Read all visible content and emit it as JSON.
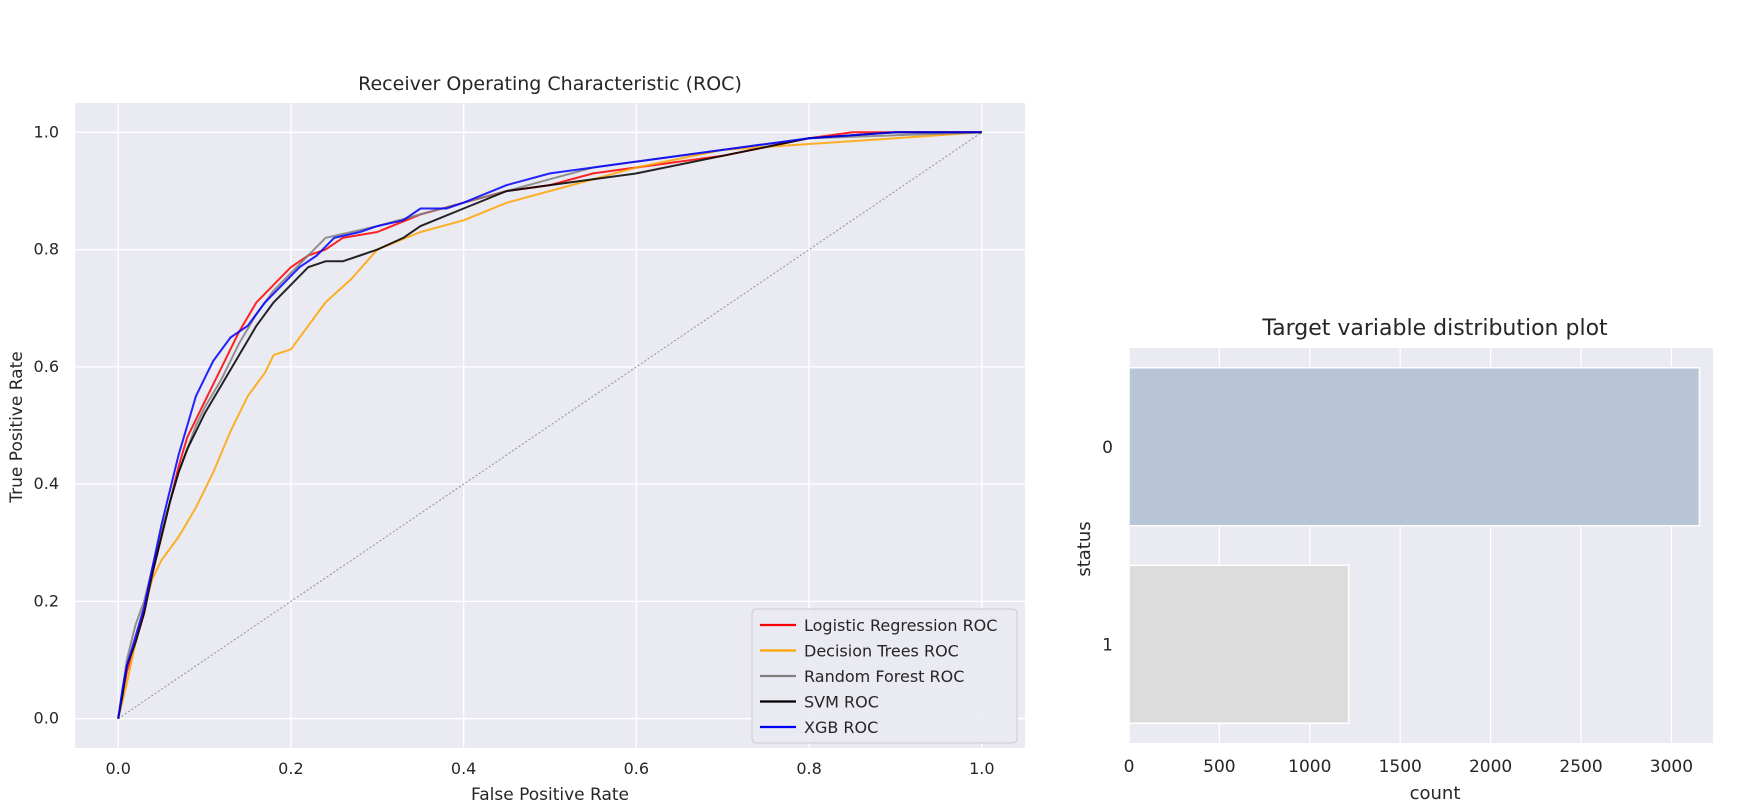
{
  "chart_data": [
    {
      "type": "line",
      "title": "Receiver Operating Characteristic (ROC)",
      "xlabel": "False Positive Rate",
      "ylabel": "True Positive Rate",
      "xlim": [
        -0.05,
        1.05
      ],
      "ylim": [
        -0.05,
        1.05
      ],
      "xticks": [
        0.0,
        0.2,
        0.4,
        0.6,
        0.8,
        1.0
      ],
      "yticks": [
        0.0,
        0.2,
        0.4,
        0.6,
        0.8,
        1.0
      ],
      "tick_labels": [
        "0.0",
        "0.2",
        "0.4",
        "0.6",
        "0.8",
        "1.0"
      ],
      "grid": true,
      "legend_position": "lower-right",
      "series": [
        {
          "name": "Logistic Regression ROC",
          "color": "#ff0000",
          "x": [
            0,
            0.005,
            0.01,
            0.02,
            0.03,
            0.04,
            0.05,
            0.06,
            0.07,
            0.08,
            0.09,
            0.1,
            0.12,
            0.14,
            0.16,
            0.18,
            0.2,
            0.22,
            0.24,
            0.26,
            0.3,
            0.35,
            0.4,
            0.45,
            0.5,
            0.55,
            0.6,
            0.7,
            0.8,
            0.85,
            0.9,
            1.0
          ],
          "y": [
            0,
            0.04,
            0.08,
            0.13,
            0.18,
            0.25,
            0.31,
            0.37,
            0.43,
            0.48,
            0.51,
            0.54,
            0.6,
            0.66,
            0.71,
            0.74,
            0.77,
            0.79,
            0.8,
            0.82,
            0.83,
            0.86,
            0.88,
            0.9,
            0.91,
            0.93,
            0.94,
            0.96,
            0.99,
            1.0,
            1.0,
            1.0
          ]
        },
        {
          "name": "Decision Trees ROC",
          "color": "#ffa500",
          "x": [
            0,
            0.01,
            0.02,
            0.03,
            0.04,
            0.05,
            0.07,
            0.09,
            0.11,
            0.13,
            0.15,
            0.17,
            0.18,
            0.2,
            0.22,
            0.24,
            0.27,
            0.3,
            0.35,
            0.4,
            0.45,
            0.5,
            0.6,
            0.7,
            0.8,
            0.9,
            1.0
          ],
          "y": [
            0,
            0.06,
            0.13,
            0.19,
            0.24,
            0.27,
            0.31,
            0.36,
            0.42,
            0.49,
            0.55,
            0.59,
            0.62,
            0.63,
            0.67,
            0.71,
            0.75,
            0.8,
            0.83,
            0.85,
            0.88,
            0.9,
            0.94,
            0.97,
            0.98,
            0.99,
            1.0
          ]
        },
        {
          "name": "Random Forest ROC",
          "color": "#808080",
          "x": [
            0,
            0.005,
            0.01,
            0.02,
            0.03,
            0.04,
            0.05,
            0.06,
            0.07,
            0.08,
            0.09,
            0.1,
            0.12,
            0.14,
            0.16,
            0.18,
            0.2,
            0.22,
            0.24,
            0.27,
            0.3,
            0.35,
            0.4,
            0.45,
            0.5,
            0.55,
            0.6,
            0.65,
            0.7,
            0.8,
            0.9,
            1.0
          ],
          "y": [
            0,
            0.05,
            0.1,
            0.16,
            0.2,
            0.26,
            0.32,
            0.37,
            0.42,
            0.46,
            0.5,
            0.53,
            0.58,
            0.64,
            0.69,
            0.73,
            0.76,
            0.79,
            0.82,
            0.83,
            0.84,
            0.86,
            0.88,
            0.9,
            0.92,
            0.94,
            0.95,
            0.96,
            0.97,
            0.99,
            0.995,
            1.0
          ]
        },
        {
          "name": "SVM ROC",
          "color": "#000000",
          "x": [
            0,
            0.005,
            0.01,
            0.02,
            0.03,
            0.04,
            0.05,
            0.06,
            0.07,
            0.08,
            0.09,
            0.1,
            0.12,
            0.14,
            0.16,
            0.18,
            0.2,
            0.22,
            0.24,
            0.26,
            0.28,
            0.3,
            0.33,
            0.35,
            0.4,
            0.45,
            0.5,
            0.55,
            0.6,
            0.7,
            0.8,
            0.9,
            1.0
          ],
          "y": [
            0,
            0.04,
            0.09,
            0.13,
            0.18,
            0.25,
            0.31,
            0.37,
            0.42,
            0.46,
            0.49,
            0.52,
            0.57,
            0.62,
            0.67,
            0.71,
            0.74,
            0.77,
            0.78,
            0.78,
            0.79,
            0.8,
            0.82,
            0.84,
            0.87,
            0.9,
            0.91,
            0.92,
            0.93,
            0.96,
            0.99,
            1.0,
            1.0
          ]
        },
        {
          "name": "XGB ROC",
          "color": "#0000ff",
          "x": [
            0,
            0.005,
            0.01,
            0.02,
            0.03,
            0.04,
            0.05,
            0.06,
            0.07,
            0.08,
            0.09,
            0.1,
            0.11,
            0.13,
            0.15,
            0.17,
            0.19,
            0.21,
            0.23,
            0.25,
            0.28,
            0.3,
            0.33,
            0.35,
            0.38,
            0.4,
            0.45,
            0.5,
            0.55,
            0.6,
            0.7,
            0.8,
            0.9,
            1.0
          ],
          "y": [
            0,
            0.05,
            0.09,
            0.14,
            0.19,
            0.26,
            0.33,
            0.39,
            0.45,
            0.5,
            0.55,
            0.58,
            0.61,
            0.65,
            0.67,
            0.71,
            0.74,
            0.77,
            0.79,
            0.82,
            0.83,
            0.84,
            0.85,
            0.87,
            0.87,
            0.88,
            0.91,
            0.93,
            0.94,
            0.95,
            0.97,
            0.99,
            1.0,
            1.0
          ]
        }
      ],
      "reference_line": {
        "x": [
          0,
          1
        ],
        "y": [
          0,
          1
        ],
        "color": "#999999",
        "style": "dotted"
      }
    },
    {
      "type": "bar",
      "orientation": "horizontal",
      "title": "Target variable distribution plot",
      "xlabel": "count",
      "ylabel": "status",
      "categories": [
        "0",
        "1"
      ],
      "values": [
        3155,
        1215
      ],
      "colors": [
        "#b7c5d7",
        "#dcdcdc"
      ],
      "xlim": [
        0,
        3230
      ],
      "xticks": [
        0,
        500,
        1000,
        1500,
        2000,
        2500,
        3000
      ],
      "grid": true
    }
  ]
}
